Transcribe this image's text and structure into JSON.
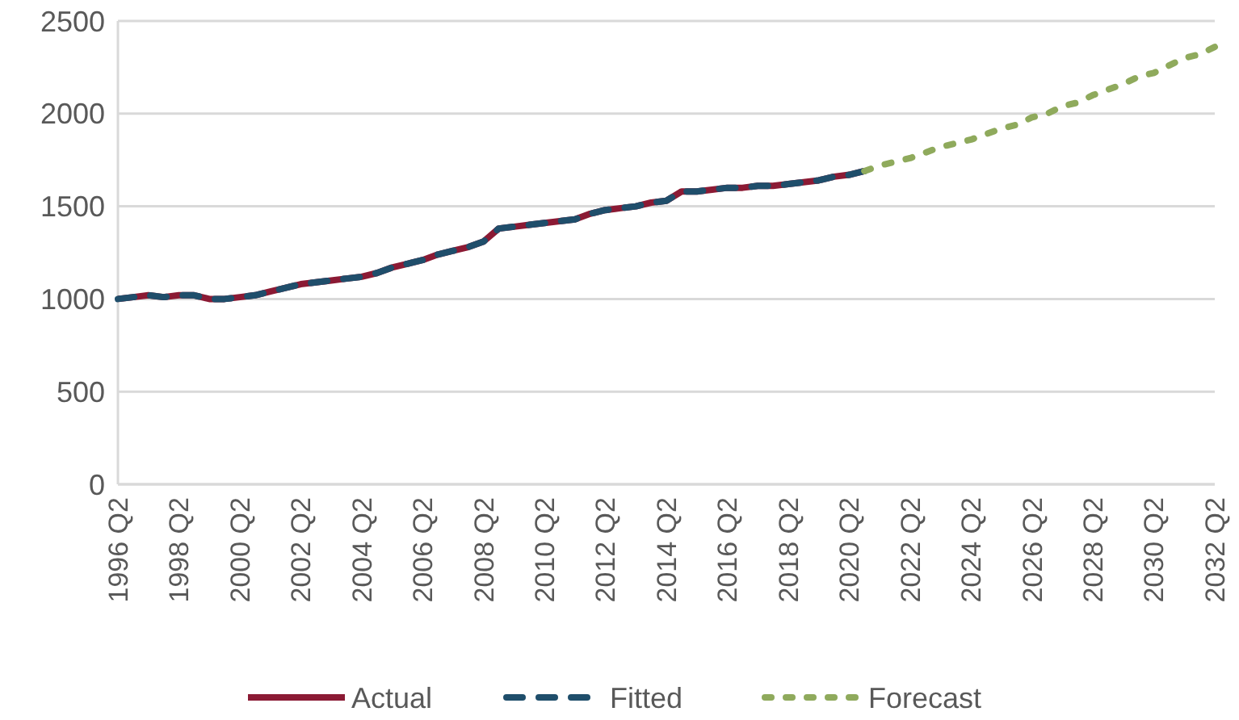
{
  "chart_data": {
    "type": "line",
    "categories": [
      "1996 Q2",
      null,
      null,
      null,
      "1998 Q2",
      null,
      null,
      null,
      "2000 Q2",
      null,
      null,
      null,
      "2002 Q2",
      null,
      null,
      null,
      "2004 Q2",
      null,
      null,
      null,
      "2006 Q2",
      null,
      null,
      null,
      "2008 Q2",
      null,
      null,
      null,
      "2010 Q2",
      null,
      null,
      null,
      "2012 Q2",
      null,
      null,
      null,
      "2014 Q2",
      null,
      null,
      null,
      "2016 Q2",
      null,
      null,
      null,
      "2018 Q2",
      null,
      null,
      null,
      "2020 Q2",
      null,
      null,
      null,
      "2022 Q2",
      null,
      null,
      null,
      "2024 Q2",
      null,
      null,
      null,
      "2026 Q2",
      null,
      null,
      null,
      "2028 Q2",
      null,
      null,
      null,
      "2030 Q2",
      null,
      null,
      null,
      "2032 Q2"
    ],
    "series": [
      {
        "name": "Actual",
        "color": "#8b1a34",
        "line_style": "solid",
        "values": [
          1000,
          1010,
          1020,
          1010,
          1020,
          1020,
          1000,
          1000,
          1010,
          1020,
          1040,
          1060,
          1080,
          1090,
          1100,
          1110,
          1120,
          1140,
          1170,
          1190,
          1210,
          1240,
          1260,
          1280,
          1310,
          1380,
          1390,
          1400,
          1410,
          1420,
          1430,
          1460,
          1480,
          1490,
          1500,
          1520,
          1530,
          1580,
          1580,
          1590,
          1600,
          1600,
          1610,
          1610,
          1620,
          1630,
          1640,
          1660,
          1670,
          1690,
          null,
          null,
          null,
          null,
          null,
          null,
          null,
          null,
          null,
          null,
          null,
          null,
          null,
          null,
          null,
          null,
          null,
          null,
          null,
          null,
          null,
          null,
          null
        ]
      },
      {
        "name": "Fitted",
        "color": "#1f4e6b",
        "line_style": "dashed",
        "values": [
          1000,
          1010,
          1020,
          1010,
          1020,
          1020,
          1000,
          1000,
          1010,
          1020,
          1040,
          1060,
          1080,
          1090,
          1100,
          1110,
          1120,
          1140,
          1170,
          1190,
          1210,
          1240,
          1260,
          1280,
          1310,
          1380,
          1390,
          1400,
          1410,
          1420,
          1430,
          1460,
          1480,
          1490,
          1500,
          1520,
          1530,
          1580,
          1580,
          1590,
          1600,
          1600,
          1610,
          1610,
          1620,
          1630,
          1640,
          1660,
          1670,
          1690,
          null,
          null,
          null,
          null,
          null,
          null,
          null,
          null,
          null,
          null,
          null,
          null,
          null,
          null,
          null,
          null,
          null,
          null,
          null,
          null,
          null,
          null,
          null
        ]
      },
      {
        "name": "Forecast",
        "color": "#8faa5c",
        "line_style": "dotted",
        "values": [
          null,
          null,
          null,
          null,
          null,
          null,
          null,
          null,
          null,
          null,
          null,
          null,
          null,
          null,
          null,
          null,
          null,
          null,
          null,
          null,
          null,
          null,
          null,
          null,
          null,
          null,
          null,
          null,
          null,
          null,
          null,
          null,
          null,
          null,
          null,
          null,
          null,
          null,
          null,
          null,
          null,
          null,
          null,
          null,
          null,
          null,
          null,
          null,
          null,
          1690,
          1720,
          1740,
          1760,
          1790,
          1820,
          1840,
          1860,
          1890,
          1920,
          1940,
          1980,
          2000,
          2040,
          2060,
          2100,
          2130,
          2160,
          2200,
          2220,
          2260,
          2300,
          2320,
          2360
        ]
      }
    ],
    "ylim": [
      0,
      2500
    ],
    "yticks": [
      0,
      500,
      1000,
      1500,
      2000,
      2500
    ],
    "grid": "y",
    "legend": "bottom"
  }
}
